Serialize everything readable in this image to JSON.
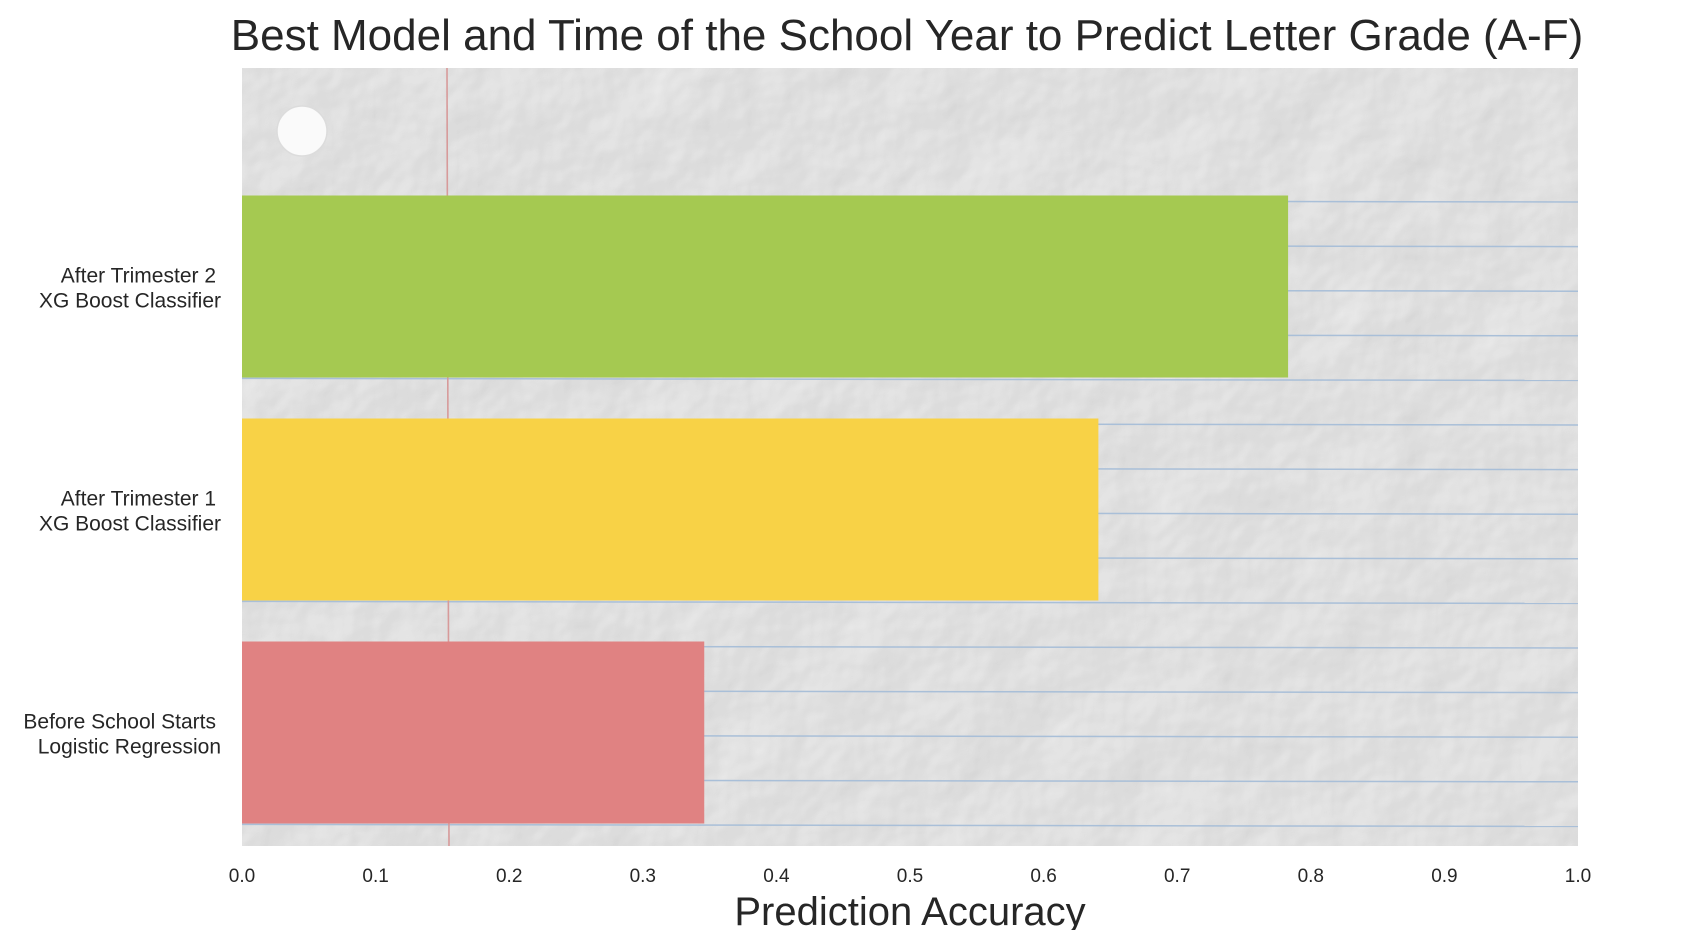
{
  "chart_data": {
    "type": "bar",
    "orientation": "horizontal",
    "title": "Best Model and Time of the School Year to Predict Letter Grade (A-F)",
    "xlabel": "Prediction Accuracy",
    "ylabel": "",
    "xlim": [
      0,
      1.0
    ],
    "x_ticks": [
      "0.0",
      "0.1",
      "0.2",
      "0.3",
      "0.4",
      "0.5",
      "0.6",
      "0.7",
      "0.8",
      "0.9",
      "1.0"
    ],
    "categories": [
      {
        "line1": "After Trimester 2",
        "line2": "XG Boost Classifier"
      },
      {
        "line1": "After Trimester 1",
        "line2": "XG Boost Classifier"
      },
      {
        "line1": "Before School Starts",
        "line2": "Logistic Regression"
      }
    ],
    "values": [
      0.783,
      0.641,
      0.346
    ],
    "colors": [
      "#a5c951",
      "#f8d246",
      "#e08282"
    ],
    "background": "crumpled lined notebook paper",
    "grid": false,
    "legend": "none"
  }
}
